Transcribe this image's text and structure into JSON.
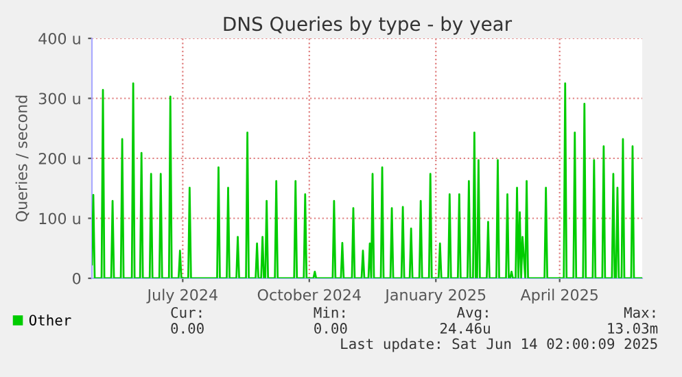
{
  "chart_data": {
    "type": "line",
    "title": "DNS Queries by type - by year",
    "ylabel": "Queries / second",
    "x": [
      "2024-05-10",
      "2024-05-11",
      "2024-05-12",
      "2024-05-17",
      "2024-05-18",
      "2024-05-19",
      "2024-05-24",
      "2024-05-25",
      "2024-05-26",
      "2024-05-31",
      "2024-06-01",
      "2024-06-02",
      "2024-06-08",
      "2024-06-09",
      "2024-06-10",
      "2024-06-14",
      "2024-06-15",
      "2024-06-16",
      "2024-06-21",
      "2024-06-22",
      "2024-06-23",
      "2024-06-28",
      "2024-06-29",
      "2024-06-30",
      "2024-07-05",
      "2024-07-06",
      "2024-07-07",
      "2024-07-12",
      "2024-07-13",
      "2024-07-14",
      "2024-07-19",
      "2024-07-20",
      "2024-07-21",
      "2024-08-09",
      "2024-08-10",
      "2024-08-11",
      "2024-08-16",
      "2024-08-17",
      "2024-08-18",
      "2024-08-23",
      "2024-08-24",
      "2024-08-25",
      "2024-08-30",
      "2024-08-31",
      "2024-09-01",
      "2024-09-06",
      "2024-09-07",
      "2024-09-08",
      "2024-09-10",
      "2024-09-11",
      "2024-09-12",
      "2024-09-13",
      "2024-09-14",
      "2024-09-15",
      "2024-09-20",
      "2024-09-21",
      "2024-09-22",
      "2024-10-04",
      "2024-10-05",
      "2024-10-06",
      "2024-10-11",
      "2024-10-12",
      "2024-10-13",
      "2024-10-18",
      "2024-10-19",
      "2024-10-20",
      "2024-11-01",
      "2024-11-02",
      "2024-11-03",
      "2024-11-07",
      "2024-11-08",
      "2024-11-09",
      "2024-11-15",
      "2024-11-16",
      "2024-11-17",
      "2024-11-22",
      "2024-11-23",
      "2024-11-24",
      "2024-11-27",
      "2024-11-28",
      "2024-11-29",
      "2024-11-30",
      "2024-12-01",
      "2024-12-06",
      "2024-12-07",
      "2024-12-08",
      "2024-12-13",
      "2024-12-14",
      "2024-12-15",
      "2024-12-21",
      "2024-12-22",
      "2024-12-23",
      "2024-12-27",
      "2024-12-28",
      "2024-12-29",
      "2025-01-03",
      "2025-01-04",
      "2025-01-05",
      "2025-01-10",
      "2025-01-11",
      "2025-01-12",
      "2025-01-17",
      "2025-01-18",
      "2025-01-19",
      "2025-01-24",
      "2025-01-25",
      "2025-01-26",
      "2025-01-31",
      "2025-02-01",
      "2025-02-02",
      "2025-02-07",
      "2025-02-08",
      "2025-02-09",
      "2025-02-11",
      "2025-02-12",
      "2025-02-13",
      "2025-02-14",
      "2025-02-15",
      "2025-02-16",
      "2025-02-21",
      "2025-02-22",
      "2025-02-23",
      "2025-02-28",
      "2025-03-01",
      "2025-03-02",
      "2025-03-07",
      "2025-03-08",
      "2025-03-09",
      "2025-03-10",
      "2025-03-11",
      "2025-03-12",
      "2025-03-14",
      "2025-03-15",
      "2025-03-16",
      "2025-03-17",
      "2025-03-18",
      "2025-03-19",
      "2025-03-21",
      "2025-03-22",
      "2025-03-23",
      "2025-04-04",
      "2025-04-05",
      "2025-04-06",
      "2025-04-18",
      "2025-04-19",
      "2025-04-20",
      "2025-04-25",
      "2025-04-26",
      "2025-04-27",
      "2025-05-02",
      "2025-05-03",
      "2025-05-04",
      "2025-05-09",
      "2025-05-10",
      "2025-05-11",
      "2025-05-16",
      "2025-05-17",
      "2025-05-18",
      "2025-05-23",
      "2025-05-24",
      "2025-05-25",
      "2025-05-26",
      "2025-05-27",
      "2025-05-28",
      "2025-05-30",
      "2025-05-31",
      "2025-06-01",
      "2025-06-06",
      "2025-06-07",
      "2025-06-08",
      "2025-06-14"
    ],
    "series": [
      {
        "name": "Other",
        "color": "#00cc00",
        "values": [
          23,
          139,
          0,
          0,
          314,
          0,
          0,
          129,
          0,
          0,
          232,
          0,
          0,
          325,
          0,
          0,
          209,
          0,
          0,
          174,
          0,
          0,
          174,
          0,
          0,
          303,
          0,
          0,
          46,
          0,
          0,
          151,
          0,
          0,
          185,
          0,
          0,
          151,
          0,
          0,
          69,
          0,
          0,
          243,
          0,
          0,
          58,
          0,
          0,
          69,
          0,
          0,
          129,
          0,
          0,
          162,
          0,
          0,
          162,
          0,
          0,
          140,
          0,
          0,
          11,
          0,
          0,
          129,
          0,
          0,
          59,
          0,
          0,
          117,
          0,
          0,
          46,
          0,
          0,
          58,
          0,
          174,
          0,
          0,
          185,
          0,
          0,
          117,
          0,
          0,
          119,
          0,
          0,
          83,
          0,
          0,
          129,
          0,
          0,
          174,
          0,
          0,
          58,
          0,
          0,
          140,
          0,
          0,
          140,
          0,
          0,
          162,
          0,
          0,
          243,
          0,
          0,
          197,
          0,
          0,
          94,
          0,
          0,
          197,
          0,
          0,
          140,
          0,
          0,
          11,
          0,
          0,
          151,
          0,
          110,
          0,
          69,
          0,
          162,
          0,
          0,
          151,
          0,
          0,
          325,
          0,
          0,
          243,
          0,
          0,
          291,
          0,
          0,
          197,
          0,
          0,
          220,
          0,
          0,
          174,
          0,
          0,
          151,
          0,
          0,
          232,
          0,
          0,
          220,
          0,
          0
        ]
      }
    ],
    "xlim": [
      "2024-05-10",
      "2025-06-14"
    ],
    "xticks": [
      {
        "value": "2024-07-15",
        "label": "July 2024"
      },
      {
        "value": "2024-10-15",
        "label": "October 2024"
      },
      {
        "value": "2025-01-15",
        "label": "January 2025"
      },
      {
        "value": "2025-04-15",
        "label": "April 2025"
      }
    ],
    "ylim": [
      0,
      400
    ],
    "yticks": [
      0,
      {
        "value": 100,
        "label": "100 u"
      },
      {
        "value": 200,
        "label": "200 u"
      },
      {
        "value": 300,
        "label": "300 u"
      },
      {
        "value": 400,
        "label": "400 u"
      }
    ],
    "grid": true,
    "legend": "bottom",
    "marker": "none",
    "line_style": "solid",
    "annotations": [
      "Cur:",
      "Min:",
      "Avg:",
      "Max:",
      "0.00",
      "0.00",
      "24.46u",
      "13.03m",
      "Last update: Sat Jun 14 02:00:09 2025"
    ]
  }
}
